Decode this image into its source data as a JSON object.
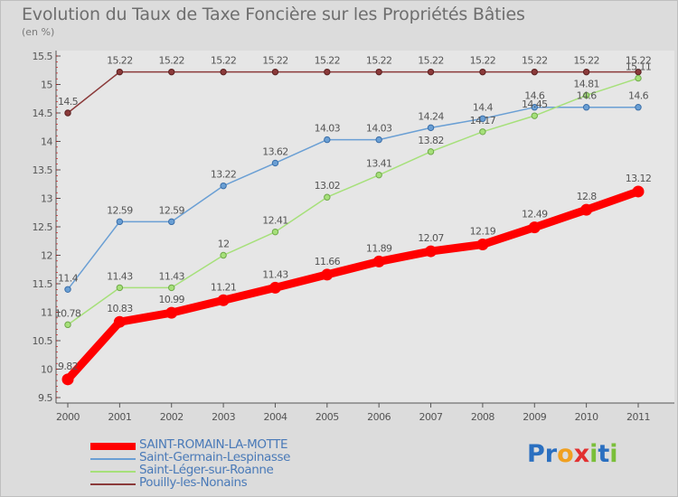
{
  "chart_data": {
    "type": "line",
    "title": "Evolution du Taux de Taxe Foncière sur les Propriétés Bâties",
    "unit_label": "(en %)",
    "x": [
      2000,
      2001,
      2002,
      2003,
      2004,
      2005,
      2006,
      2007,
      2008,
      2009,
      2010,
      2011
    ],
    "ylim": [
      9.5,
      15.5
    ],
    "yticks": [
      9.5,
      10,
      10.5,
      11,
      11.5,
      12,
      12.5,
      13,
      13.5,
      14,
      14.5,
      15,
      15.5
    ],
    "ytick_labels": [
      "9.5",
      "10",
      "10.5",
      "11",
      "11.5",
      "12",
      "12.5",
      "13",
      "13.5",
      "14",
      "14.5",
      "15",
      "15.5"
    ],
    "grid": false,
    "legend_position": "bottom-left",
    "series": [
      {
        "name": "SAINT-ROMAIN-LA-MOTTE",
        "color": "#ff0000",
        "values": [
          9.82,
          10.83,
          10.99,
          11.21,
          11.43,
          11.66,
          11.89,
          12.07,
          12.19,
          12.49,
          12.8,
          13.12
        ],
        "labels": [
          "9.82",
          "10.83",
          "10.99",
          "11.21",
          "11.43",
          "11.66",
          "11.89",
          "12.07",
          "12.19",
          "12.49",
          "12.8",
          "13.12"
        ]
      },
      {
        "name": "Saint-Germain-Lespinasse",
        "color": "#6a9fd4",
        "values": [
          11.4,
          12.59,
          12.59,
          13.22,
          13.62,
          14.03,
          14.03,
          14.24,
          14.4,
          14.6,
          14.6,
          14.6
        ],
        "labels": [
          "11.4",
          "12.59",
          "12.59",
          "13.22",
          "13.62",
          "14.03",
          "14.03",
          "14.24",
          "14.4",
          "14.6",
          "14.6",
          "14.6"
        ]
      },
      {
        "name": "Saint-Léger-sur-Roanne",
        "color": "#a6e07a",
        "values": [
          10.78,
          11.43,
          11.43,
          12,
          12.41,
          13.02,
          13.41,
          13.82,
          14.17,
          14.45,
          14.81,
          15.11
        ],
        "labels": [
          "10.78",
          "11.43",
          "11.43",
          "12",
          "12.41",
          "13.02",
          "13.41",
          "13.82",
          "14.17",
          "14.45",
          "14.81",
          "15.11"
        ]
      },
      {
        "name": "Pouilly-les-Nonains",
        "color": "#8b3a3a",
        "values": [
          14.5,
          15.22,
          15.22,
          15.22,
          15.22,
          15.22,
          15.22,
          15.22,
          15.22,
          15.22,
          15.22,
          15.22
        ],
        "labels": [
          "14.5",
          "15.22",
          "15.22",
          "15.22",
          "15.22",
          "15.22",
          "15.22",
          "15.22",
          "15.22",
          "15.22",
          "15.22",
          "15.22"
        ]
      }
    ]
  },
  "logo": {
    "text": "Proxiti",
    "letters": [
      "P",
      "r",
      "o",
      "x",
      "i",
      "t",
      "i"
    ],
    "colors": [
      "#2a6fc0",
      "#2a6fc0",
      "#f0a020",
      "#e23030",
      "#7abf3a",
      "#2a6fc0",
      "#7abf3a"
    ]
  }
}
